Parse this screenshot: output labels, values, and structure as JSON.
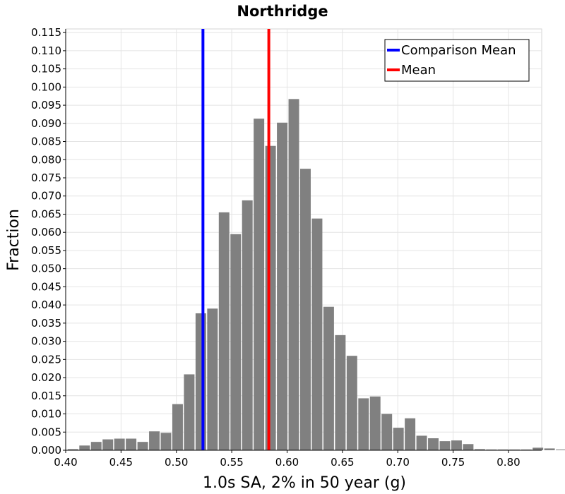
{
  "chart_data": {
    "type": "bar",
    "title": "Northridge",
    "xlabel": "1.0s SA, 2% in 50 year (g)",
    "ylabel": "Fraction",
    "xlim": [
      0.4,
      0.83
    ],
    "ylim": [
      0.0,
      0.116
    ],
    "grid": true,
    "bar_color": "#808080",
    "bins": {
      "start": 0.4015,
      "width": 0.0105,
      "values": [
        0.0003,
        0.0013,
        0.0023,
        0.003,
        0.0032,
        0.0032,
        0.0023,
        0.0052,
        0.0048,
        0.0127,
        0.0209,
        0.0377,
        0.039,
        0.0655,
        0.0595,
        0.0688,
        0.0913,
        0.0838,
        0.0902,
        0.0967,
        0.0775,
        0.0638,
        0.0395,
        0.0317,
        0.026,
        0.0143,
        0.0148,
        0.01,
        0.0062,
        0.0088,
        0.004,
        0.0033,
        0.0025,
        0.0027,
        0.0017,
        0.0003,
        0.0002,
        0.0002,
        0.0002,
        0.0002,
        0.0007,
        0.0005,
        0.0002
      ]
    },
    "x_ticks": [
      "0.40",
      "0.45",
      "0.50",
      "0.55",
      "0.60",
      "0.65",
      "0.70",
      "0.75",
      "0.80"
    ],
    "y_ticks": [
      "0.000",
      "0.005",
      "0.010",
      "0.015",
      "0.020",
      "0.025",
      "0.030",
      "0.035",
      "0.040",
      "0.045",
      "0.050",
      "0.055",
      "0.060",
      "0.065",
      "0.070",
      "0.075",
      "0.080",
      "0.085",
      "0.090",
      "0.095",
      "0.100",
      "0.105",
      "0.110",
      "0.115"
    ],
    "reference_lines": [
      {
        "name": "Comparison Mean",
        "x": 0.524,
        "color": "#0000ff"
      },
      {
        "name": "Mean",
        "x": 0.5835,
        "color": "#ff0000"
      }
    ],
    "legend": {
      "placement": "top-right",
      "entries": [
        {
          "label": "Comparison Mean",
          "color": "#0000ff"
        },
        {
          "label": "Mean",
          "color": "#ff0000"
        }
      ]
    }
  }
}
